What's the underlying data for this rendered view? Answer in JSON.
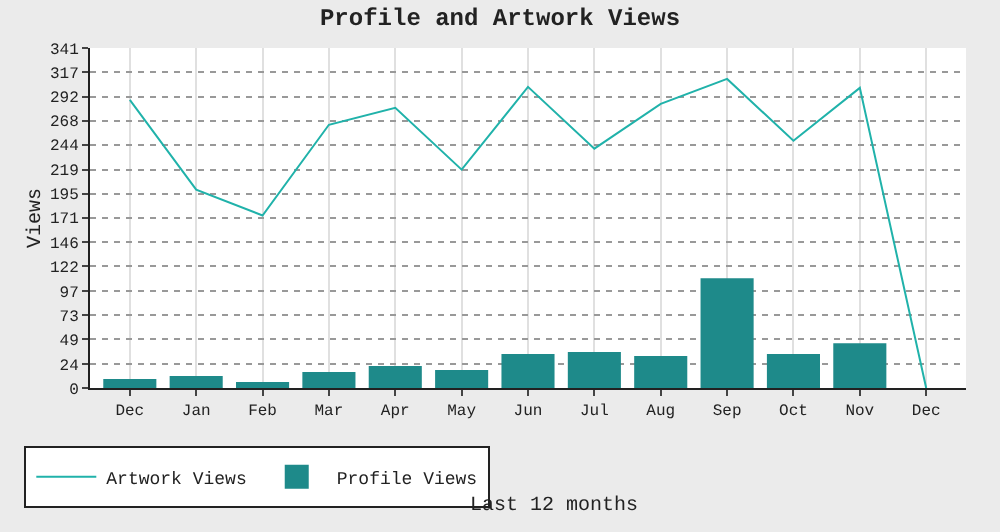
{
  "chart_data": {
    "type": "bar",
    "title": "Profile and Artwork Views",
    "xlabel": "Last 12 months",
    "ylabel": "Views",
    "categories": [
      "Dec",
      "Jan",
      "Feb",
      "Mar",
      "Apr",
      "May",
      "Jun",
      "Jul",
      "Aug",
      "Sep",
      "Oct",
      "Nov",
      "Dec"
    ],
    "series": [
      {
        "name": "Artwork Views",
        "type": "line",
        "color": "#20b2aa",
        "values": [
          289,
          199,
          173,
          264,
          281,
          219,
          302,
          240,
          285,
          310,
          248,
          301,
          0
        ]
      },
      {
        "name": "Profile Views",
        "color": "#1e8a8a",
        "values": [
          9,
          12,
          6,
          16,
          22,
          18,
          34,
          36,
          32,
          110,
          34,
          45,
          0
        ]
      }
    ],
    "ylim": [
      0,
      341
    ],
    "yticks": [
      0,
      24,
      49,
      73,
      97,
      122,
      146,
      171,
      195,
      219,
      244,
      268,
      292,
      317,
      341
    ],
    "grid": true,
    "legend": "bottom left"
  }
}
